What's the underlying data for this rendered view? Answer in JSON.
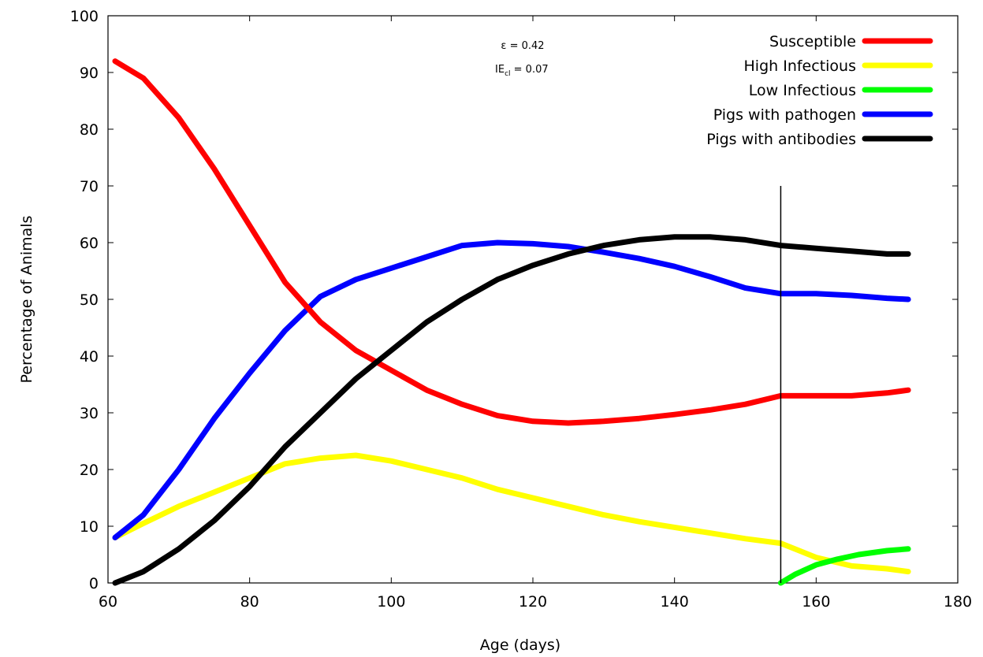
{
  "chart_data": {
    "type": "line",
    "title": "",
    "xlabel": "Age (days)",
    "ylabel": "Percentage of Animals",
    "xlim": [
      60,
      180
    ],
    "ylim": [
      0,
      100
    ],
    "xticks": [
      60,
      80,
      100,
      120,
      140,
      160,
      180
    ],
    "yticks": [
      0,
      10,
      20,
      30,
      40,
      50,
      60,
      70,
      80,
      90,
      100
    ],
    "grid": false,
    "legend_position": "top-right",
    "annotations": {
      "epsilon": "ε = 0.42",
      "ie_main": "IE",
      "ie_sub": "cl",
      "ie_value": " = 0.07"
    },
    "vline": {
      "x": 155,
      "y_top": 70
    },
    "series": [
      {
        "name": "Susceptible",
        "color": "#ff0000",
        "x": [
          61,
          65,
          70,
          75,
          80,
          85,
          90,
          95,
          100,
          105,
          110,
          115,
          120,
          125,
          130,
          135,
          140,
          145,
          150,
          155,
          160,
          165,
          170,
          173
        ],
        "y": [
          92,
          89,
          82,
          73,
          63,
          53,
          46,
          41,
          37.5,
          34,
          31.5,
          29.5,
          28.5,
          28.2,
          28.5,
          29,
          29.7,
          30.5,
          31.5,
          33,
          33,
          33,
          33.5,
          34
        ]
      },
      {
        "name": "High Infectious",
        "color": "#ffff00",
        "x": [
          61,
          65,
          70,
          75,
          80,
          85,
          90,
          95,
          100,
          105,
          110,
          115,
          120,
          125,
          130,
          135,
          140,
          145,
          150,
          155,
          160,
          165,
          170,
          173
        ],
        "y": [
          8,
          10.5,
          13.5,
          16,
          18.5,
          21,
          22,
          22.5,
          21.5,
          20,
          18.5,
          16.5,
          15,
          13.5,
          12,
          10.8,
          9.8,
          8.8,
          7.8,
          7,
          4.5,
          3,
          2.5,
          2
        ]
      },
      {
        "name": "Low Infectious",
        "color": "#00ff00",
        "x": [
          155,
          157,
          160,
          163,
          166,
          170,
          173
        ],
        "y": [
          0,
          1.5,
          3.2,
          4.2,
          5,
          5.7,
          6
        ]
      },
      {
        "name": "Pigs with pathogen",
        "color": "#0000ff",
        "x": [
          61,
          65,
          70,
          75,
          80,
          85,
          90,
          95,
          100,
          105,
          110,
          115,
          120,
          125,
          130,
          135,
          140,
          145,
          150,
          155,
          160,
          165,
          170,
          173
        ],
        "y": [
          8,
          12,
          20,
          29,
          37,
          44.5,
          50.5,
          53.5,
          55.5,
          57.5,
          59.5,
          60,
          59.8,
          59.3,
          58.3,
          57.2,
          55.8,
          54,
          52,
          51,
          51,
          50.7,
          50.2,
          50
        ]
      },
      {
        "name": "Pigs with antibodies",
        "color": "#000000",
        "x": [
          61,
          65,
          70,
          75,
          80,
          85,
          90,
          95,
          100,
          105,
          110,
          115,
          120,
          125,
          130,
          135,
          140,
          145,
          150,
          155,
          160,
          165,
          170,
          173
        ],
        "y": [
          0,
          2,
          6,
          11,
          17,
          24,
          30,
          36,
          41,
          46,
          50,
          53.5,
          56,
          58,
          59.5,
          60.5,
          61,
          61,
          60.5,
          59.5,
          59,
          58.5,
          58,
          58
        ]
      }
    ]
  }
}
